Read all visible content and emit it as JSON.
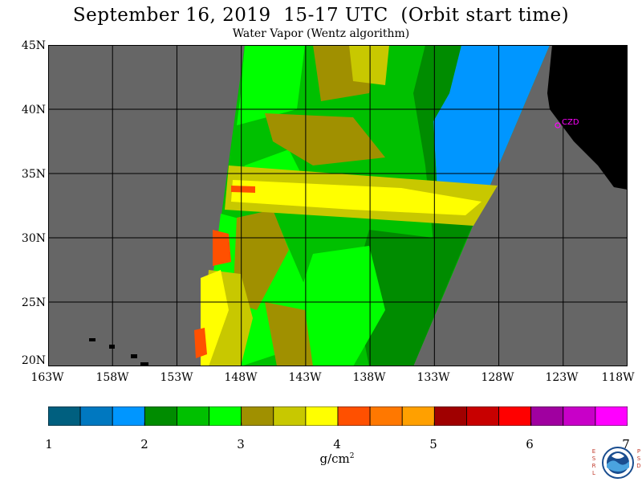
{
  "header": {
    "title": "September 16, 2019  15-17 UTC  (Orbit start time)",
    "subtitle": "Water Vapor (Wentz algorithm)"
  },
  "map": {
    "lat_labels": [
      "45N",
      "40N",
      "35N",
      "30N",
      "25N",
      "20N"
    ],
    "lon_labels": [
      "163W",
      "158W",
      "153W",
      "148W",
      "143W",
      "138W",
      "133W",
      "128W",
      "123W",
      "118W"
    ],
    "lat_range": [
      20,
      45
    ],
    "lon_range": [
      -163,
      -118
    ],
    "place_marker": "CZD",
    "colors": {
      "no_data": "#666666",
      "land": "#000000",
      "grid": "#000000",
      "marker": "#ff00ff"
    }
  },
  "colorbar": {
    "min": 1,
    "max": 7,
    "tick_labels": [
      "1",
      "2",
      "3",
      "4",
      "5",
      "6",
      "7"
    ],
    "units_base": "g/cm",
    "units_exp": "2",
    "colors": [
      "#005f7f",
      "#0078c0",
      "#0096ff",
      "#008c00",
      "#00c000",
      "#00ff00",
      "#a09000",
      "#c8c800",
      "#ffff00",
      "#ff5000",
      "#ff7800",
      "#ffa000",
      "#a00000",
      "#c80000",
      "#ff0000",
      "#a000a0",
      "#c800c8",
      "#ff00ff"
    ]
  },
  "logo": {
    "left_letters": [
      "E",
      "S",
      "R",
      "L"
    ],
    "right_letters": [
      "P",
      "S",
      "D"
    ]
  }
}
